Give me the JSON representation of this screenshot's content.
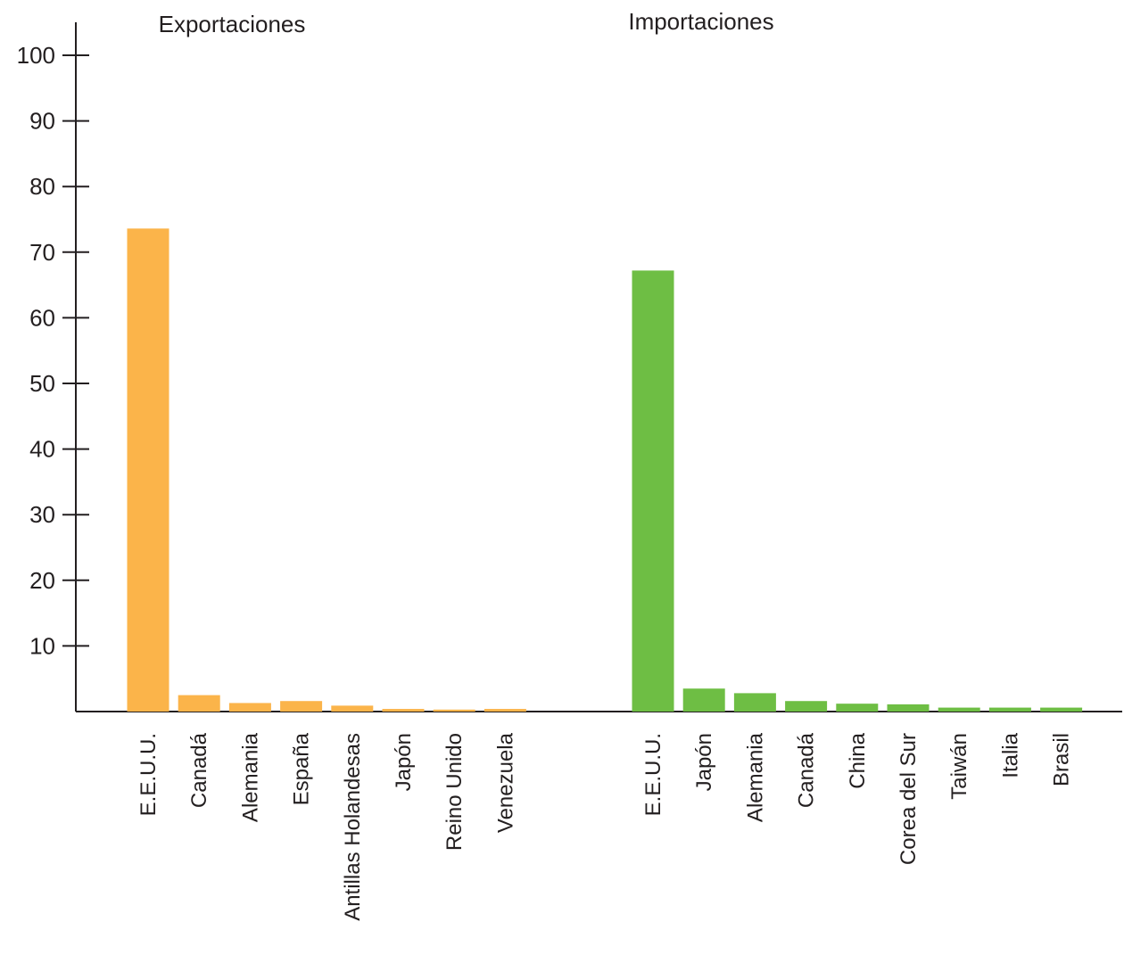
{
  "chart_data": {
    "type": "bar",
    "ylim": [
      0,
      100
    ],
    "yticks": [
      10,
      20,
      30,
      40,
      50,
      60,
      70,
      80,
      90,
      100
    ],
    "grid": false,
    "groups": [
      {
        "title": "Exportaciones",
        "color": "#fbb44a",
        "categories": [
          "E.E.U.U.",
          "Canadá",
          "Alemania",
          "España",
          "Antillas Holandesas",
          "Japón",
          "Reino Unido",
          "Venezuela"
        ],
        "values": [
          73.6,
          2.5,
          1.3,
          1.6,
          0.9,
          0.4,
          0.3,
          0.4
        ]
      },
      {
        "title": "Importaciones",
        "color": "#6ebe44",
        "categories": [
          "E.E.U.U.",
          "Japón",
          "Alemania",
          "Canadá",
          "China",
          "Corea del Sur",
          "Taiwán",
          "Italia",
          "Brasil"
        ],
        "values": [
          67.2,
          3.5,
          2.8,
          1.6,
          1.2,
          1.1,
          0.6,
          0.6,
          0.6
        ]
      }
    ]
  }
}
